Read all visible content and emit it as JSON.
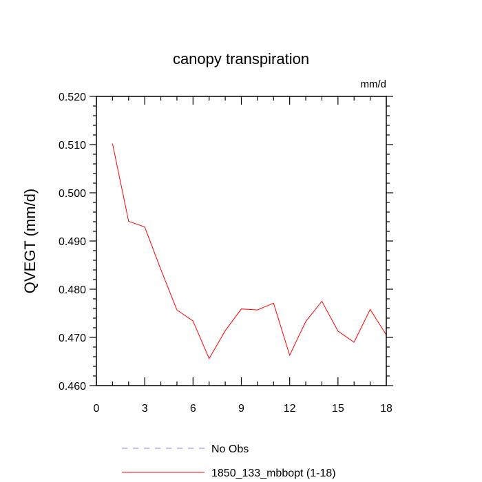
{
  "chart_data": {
    "type": "line",
    "title": "canopy transpiration",
    "units_label": "mm/d",
    "xlabel": "",
    "ylabel": "QVEGT  (mm/d)",
    "xlim": [
      0,
      18
    ],
    "ylim": [
      0.46,
      0.52
    ],
    "xticks": [
      0,
      3,
      6,
      9,
      12,
      15,
      18
    ],
    "xtick_labels": [
      "0",
      "3",
      "6",
      "9",
      "12",
      "15",
      "18"
    ],
    "yticks": [
      0.46,
      0.47,
      0.48,
      0.49,
      0.5,
      0.51,
      0.52
    ],
    "ytick_labels": [
      "0.460",
      "0.470",
      "0.480",
      "0.490",
      "0.500",
      "0.510",
      "0.520"
    ],
    "grid": false,
    "legend_position": "bottom",
    "series": [
      {
        "name": "No Obs",
        "color": "#8080ff",
        "dash": "dashed",
        "x": [],
        "y": []
      },
      {
        "name": "1850_133_mbbopt (1-18)",
        "color": "#ff0000",
        "dash": "solid",
        "x": [
          1,
          2,
          3,
          4,
          5,
          6,
          7,
          8,
          9,
          10,
          11,
          12,
          13,
          14,
          15,
          16,
          17,
          18
        ],
        "y": [
          0.5102,
          0.4941,
          0.4929,
          0.4841,
          0.4757,
          0.4734,
          0.4656,
          0.4714,
          0.4759,
          0.4757,
          0.4771,
          0.4663,
          0.4733,
          0.4775,
          0.4713,
          0.469,
          0.4758,
          0.4705
        ]
      }
    ]
  }
}
